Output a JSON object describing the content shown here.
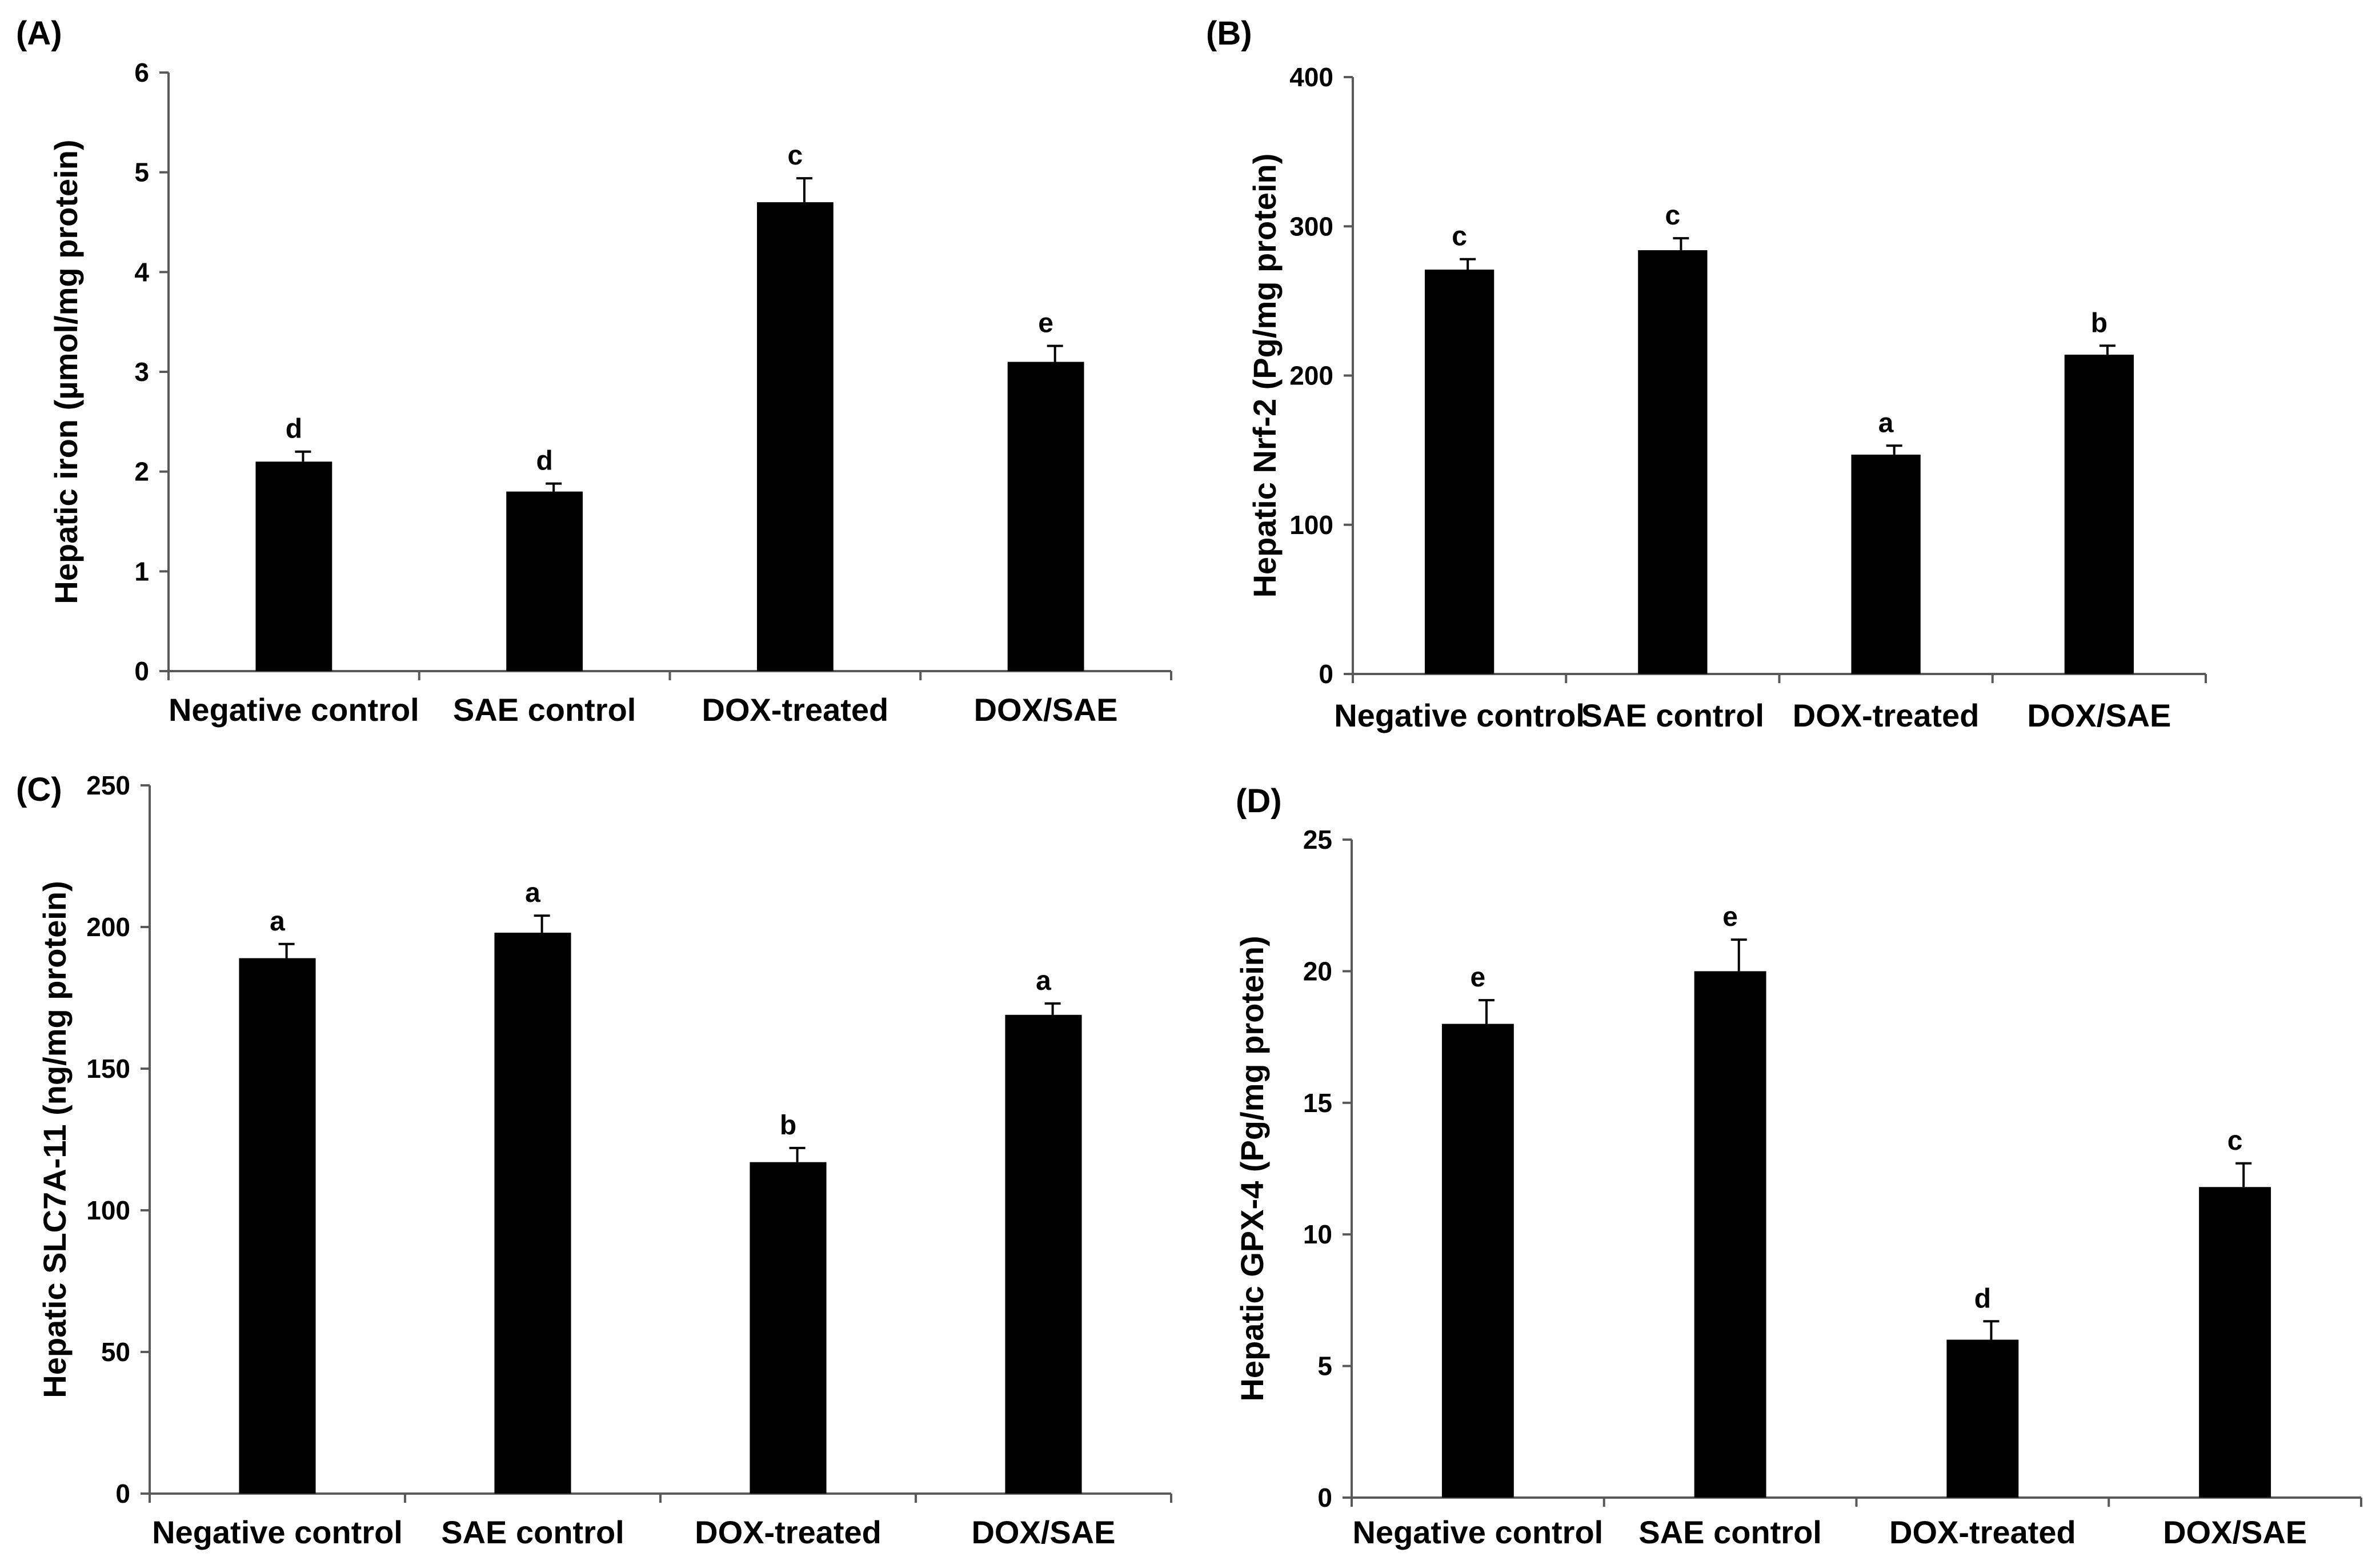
{
  "figure": {
    "categories": [
      "Negative control",
      "SAE control",
      "DOX-treated",
      "DOX/SAE"
    ],
    "bar_color": "#000000"
  },
  "chart_data": [
    {
      "type": "bar",
      "panel_label": "(A)",
      "title": "",
      "xlabel": "",
      "ylabel": "Hepatic iron (µmol/mg protein)",
      "categories": [
        "Negative control",
        "SAE control",
        "DOX-treated",
        "DOX/SAE"
      ],
      "values": [
        2.1,
        1.8,
        4.7,
        3.1
      ],
      "errors": [
        0.1,
        0.08,
        0.24,
        0.16
      ],
      "letters": [
        "d",
        "d",
        "c",
        "e"
      ],
      "ylim": [
        0,
        6
      ],
      "yticks": [
        0,
        1,
        2,
        3,
        4,
        5,
        6
      ]
    },
    {
      "type": "bar",
      "panel_label": "(B)",
      "title": "",
      "xlabel": "",
      "ylabel": "Hepatic Nrf-2 (Pg/mg protein)",
      "categories": [
        "Negative control",
        "SAE control",
        "DOX-treated",
        "DOX/SAE"
      ],
      "values": [
        271,
        284,
        147,
        214
      ],
      "errors": [
        7,
        8,
        6,
        6
      ],
      "letters": [
        "c",
        "c",
        "a",
        "b"
      ],
      "ylim": [
        0,
        400
      ],
      "yticks": [
        0,
        100,
        200,
        300,
        400
      ]
    },
    {
      "type": "bar",
      "panel_label": "(C)",
      "title": "",
      "xlabel": "",
      "ylabel": "Hepatic SLC7A-11 (ng/mg protein)",
      "categories": [
        "Negative control",
        "SAE control",
        "DOX-treated",
        "DOX/SAE"
      ],
      "values": [
        189,
        198,
        117,
        169
      ],
      "errors": [
        5,
        6,
        5,
        4
      ],
      "letters": [
        "a",
        "a",
        "b",
        "a"
      ],
      "ylim": [
        0,
        250
      ],
      "yticks": [
        0,
        50,
        100,
        150,
        200,
        250
      ]
    },
    {
      "type": "bar",
      "panel_label": "(D)",
      "title": "",
      "xlabel": "",
      "ylabel": "Hepatic GPX-4 (Pg/mg protein)",
      "categories": [
        "Negative control",
        "SAE control",
        "DOX-treated",
        "DOX/SAE"
      ],
      "values": [
        18,
        20,
        6,
        11.8
      ],
      "errors": [
        0.9,
        1.2,
        0.7,
        0.9
      ],
      "letters": [
        "e",
        "e",
        "d",
        "c"
      ],
      "ylim": [
        0,
        25
      ],
      "yticks": [
        0,
        5,
        10,
        15,
        20,
        25
      ]
    }
  ]
}
